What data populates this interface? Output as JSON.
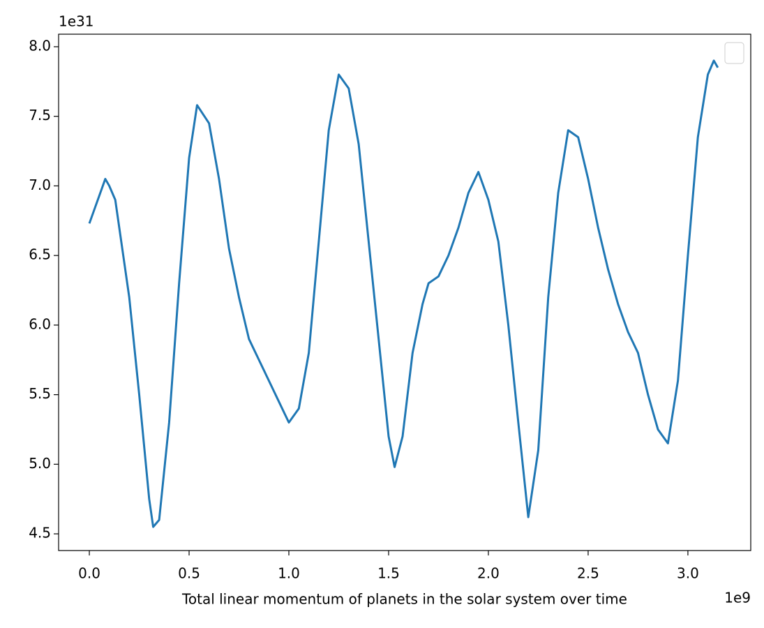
{
  "chart_data": {
    "type": "line",
    "xlabel": "Total linear momentum of planets in the solar system over time",
    "x_offset_label": "1e9",
    "y_offset_label": "1e31",
    "x": [
      0,
      0.05,
      0.08,
      0.1,
      0.13,
      0.15,
      0.2,
      0.25,
      0.3,
      0.32,
      0.35,
      0.4,
      0.45,
      0.5,
      0.54,
      0.6,
      0.65,
      0.7,
      0.75,
      0.8,
      0.85,
      0.9,
      0.95,
      1.0,
      1.05,
      1.1,
      1.15,
      1.2,
      1.25,
      1.3,
      1.35,
      1.4,
      1.45,
      1.5,
      1.53,
      1.57,
      1.62,
      1.67,
      1.7,
      1.75,
      1.8,
      1.85,
      1.9,
      1.95,
      2.0,
      2.05,
      2.1,
      2.15,
      2.2,
      2.25,
      2.3,
      2.35,
      2.4,
      2.45,
      2.5,
      2.55,
      2.6,
      2.65,
      2.7,
      2.75,
      2.8,
      2.85,
      2.9,
      2.95,
      3.0,
      3.05,
      3.1,
      3.13,
      3.15
    ],
    "values": [
      6.73,
      6.93,
      7.05,
      7.0,
      6.9,
      6.7,
      6.2,
      5.5,
      4.75,
      4.55,
      4.6,
      5.3,
      6.3,
      7.2,
      7.58,
      7.45,
      7.05,
      6.55,
      6.2,
      5.9,
      5.75,
      5.6,
      5.45,
      5.3,
      5.4,
      5.8,
      6.6,
      7.4,
      7.8,
      7.7,
      7.3,
      6.6,
      5.9,
      5.2,
      4.98,
      5.2,
      5.8,
      6.15,
      6.3,
      6.35,
      6.5,
      6.7,
      6.95,
      7.1,
      6.9,
      6.6,
      6.0,
      5.3,
      4.62,
      5.1,
      6.2,
      6.95,
      7.4,
      7.35,
      7.05,
      6.7,
      6.4,
      6.15,
      5.95,
      5.8,
      5.5,
      5.25,
      5.15,
      5.6,
      6.5,
      7.35,
      7.8,
      7.9,
      7.85
    ],
    "color": "#1f77b4",
    "xlim": [
      -0.154,
      3.315
    ],
    "ylim": [
      4.38,
      8.09
    ],
    "xticks": [
      {
        "value": 0,
        "label": "0.0"
      },
      0.5,
      {
        "value": 1,
        "label": "1.0"
      },
      1.5,
      {
        "value": 2,
        "label": "2.0"
      },
      2.5,
      {
        "value": 3,
        "label": "3.0"
      }
    ],
    "yticks": [
      4.5,
      {
        "value": 5,
        "label": "5.0"
      },
      5.5,
      {
        "value": 6,
        "label": "6.0"
      },
      6.5,
      {
        "value": 7,
        "label": "7.0"
      },
      7.5,
      {
        "value": 8,
        "label": "8.0"
      }
    ],
    "grid": false
  }
}
